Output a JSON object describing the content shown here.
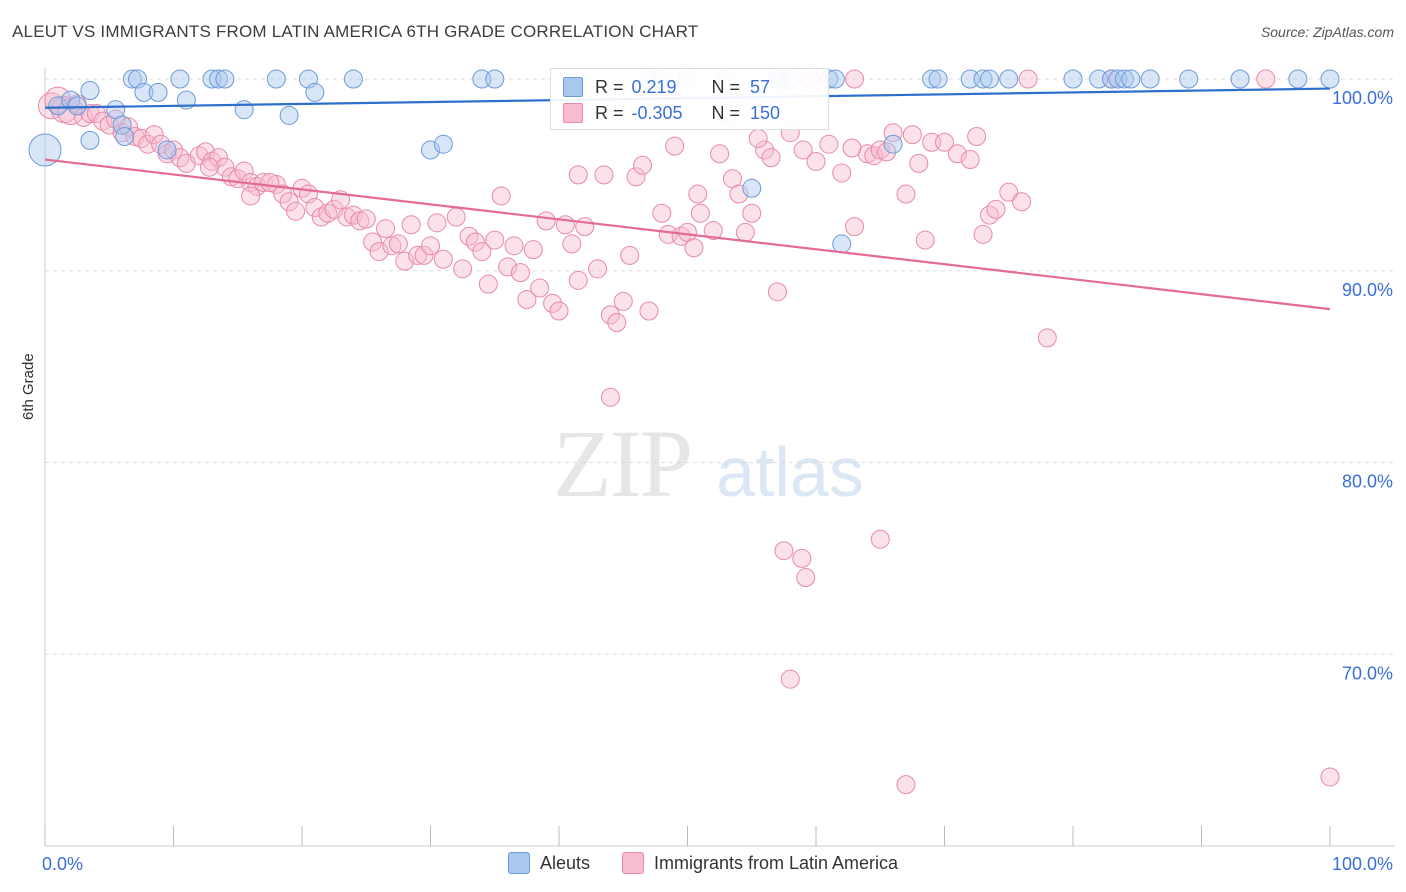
{
  "header": {
    "title": "ALEUT VS IMMIGRANTS FROM LATIN AMERICA 6TH GRADE CORRELATION CHART",
    "source": "Source: ZipAtlas.com"
  },
  "watermark": {
    "zip": "ZIP",
    "atlas": "atlas"
  },
  "legend_box": {
    "rows": [
      {
        "r_label": "R = ",
        "r_value": " 0.219",
        "n_label": "N = ",
        "n_value": " 57",
        "color": "#a9c8f0",
        "border": "#6e9ad8"
      },
      {
        "r_label": "R = ",
        "r_value": "-0.305",
        "n_label": "N = ",
        "n_value": "150",
        "color": "#f7bcd0",
        "border": "#e88aa8"
      }
    ]
  },
  "bottom_legend": {
    "items": [
      {
        "label": "Aleuts",
        "color": "#a9c8f0",
        "border": "#6e9ad8"
      },
      {
        "label": "Immigrants from Latin America",
        "color": "#f7bcd0",
        "border": "#e88aa8"
      }
    ]
  },
  "chart_data": {
    "type": "scatter",
    "title": "ALEUT VS IMMIGRANTS FROM LATIN AMERICA 6TH GRADE CORRELATION CHART",
    "xlabel": "",
    "ylabel": "6th Grade",
    "xlim": [
      0,
      100
    ],
    "ylim": [
      60,
      100
    ],
    "x_tick_labels": [
      "0.0%",
      "100.0%"
    ],
    "y_ticks": [
      70,
      80,
      90,
      100
    ],
    "y_tick_labels": [
      "70.0%",
      "80.0%",
      "90.0%",
      "100.0%"
    ],
    "grid": true,
    "legend_position": "top-center",
    "colors": {
      "aleuts": "#6e9ad8",
      "aleuts_line": "#2f6fcc",
      "latin": "#e88aa8",
      "latin_line": "#e56a94",
      "tick_label": "#3a6fd8"
    },
    "series": [
      {
        "name": "Aleuts",
        "r": 0.219,
        "n": 57,
        "trend": [
          [
            0,
            98.5
          ],
          [
            100,
            99.5
          ]
        ],
        "points": [
          [
            0,
            96.3
          ],
          [
            1,
            98.6
          ],
          [
            2,
            98.9
          ],
          [
            2.5,
            98.6
          ],
          [
            3.5,
            99.4
          ],
          [
            3.5,
            96.8
          ],
          [
            5.5,
            98.4
          ],
          [
            6,
            97.6
          ],
          [
            6.2,
            97.0
          ],
          [
            6.8,
            100
          ],
          [
            7.2,
            100
          ],
          [
            7.7,
            99.3
          ],
          [
            8.8,
            99.3
          ],
          [
            9.5,
            96.3
          ],
          [
            10.5,
            100
          ],
          [
            11,
            98.9
          ],
          [
            13,
            100
          ],
          [
            13.5,
            100
          ],
          [
            14,
            100
          ],
          [
            15.5,
            98.4
          ],
          [
            18,
            100
          ],
          [
            19,
            98.1
          ],
          [
            20.5,
            100
          ],
          [
            21,
            99.3
          ],
          [
            24,
            100
          ],
          [
            30,
            96.3
          ],
          [
            31,
            96.6
          ],
          [
            34,
            100
          ],
          [
            35,
            100
          ],
          [
            47,
            100
          ],
          [
            50,
            100
          ],
          [
            53,
            100
          ],
          [
            55,
            94.3
          ],
          [
            58,
            100
          ],
          [
            61,
            100
          ],
          [
            62,
            91.4
          ],
          [
            66,
            96.6
          ],
          [
            69,
            100
          ],
          [
            72,
            100
          ],
          [
            73,
            100
          ],
          [
            73.5,
            100
          ],
          [
            75,
            100
          ],
          [
            80,
            100
          ],
          [
            82,
            100
          ],
          [
            83,
            100
          ],
          [
            83.5,
            100
          ],
          [
            84,
            100
          ],
          [
            86,
            100
          ],
          [
            89,
            100
          ],
          [
            93,
            100
          ],
          [
            97.5,
            100
          ],
          [
            100,
            100
          ],
          [
            48,
            100
          ],
          [
            57,
            100
          ],
          [
            61.5,
            100
          ],
          [
            69.5,
            100
          ],
          [
            84.5,
            100
          ]
        ]
      },
      {
        "name": "Immigrants from Latin America",
        "r": -0.305,
        "n": 150,
        "trend": [
          [
            0,
            95.8
          ],
          [
            100,
            88.0
          ]
        ],
        "points": [
          [
            0.5,
            98.6
          ],
          [
            1,
            98.9
          ],
          [
            1.5,
            98.4
          ],
          [
            2,
            98.3
          ],
          [
            2.5,
            98.7
          ],
          [
            3,
            98.0
          ],
          [
            3.5,
            98.2
          ],
          [
            4,
            98.2
          ],
          [
            4.5,
            97.8
          ],
          [
            5,
            97.6
          ],
          [
            5.5,
            97.9
          ],
          [
            6,
            97.2
          ],
          [
            6.5,
            97.5
          ],
          [
            7,
            97.0
          ],
          [
            7.5,
            96.9
          ],
          [
            8,
            96.6
          ],
          [
            8.5,
            97.1
          ],
          [
            9,
            96.6
          ],
          [
            9.5,
            96.1
          ],
          [
            10,
            96.3
          ],
          [
            10.5,
            95.9
          ],
          [
            11,
            95.6
          ],
          [
            12,
            96.0
          ],
          [
            12.5,
            96.2
          ],
          [
            13,
            95.7
          ],
          [
            13.5,
            95.9
          ],
          [
            14,
            95.4
          ],
          [
            14.5,
            94.9
          ],
          [
            15,
            94.8
          ],
          [
            15.5,
            95.2
          ],
          [
            16,
            94.6
          ],
          [
            16.5,
            94.4
          ],
          [
            17,
            94.6
          ],
          [
            18,
            94.5
          ],
          [
            18.5,
            94.0
          ],
          [
            19,
            93.6
          ],
          [
            19.5,
            93.1
          ],
          [
            20,
            94.3
          ],
          [
            20.5,
            94.0
          ],
          [
            21,
            93.3
          ],
          [
            21.5,
            92.8
          ],
          [
            22,
            93.0
          ],
          [
            22.5,
            93.2
          ],
          [
            23,
            93.7
          ],
          [
            23.5,
            92.8
          ],
          [
            24,
            92.9
          ],
          [
            24.5,
            92.6
          ],
          [
            25,
            92.7
          ],
          [
            25.5,
            91.5
          ],
          [
            26,
            91.0
          ],
          [
            26.5,
            92.2
          ],
          [
            27,
            91.3
          ],
          [
            27.5,
            91.4
          ],
          [
            28,
            90.5
          ],
          [
            28.5,
            92.4
          ],
          [
            29,
            90.8
          ],
          [
            29.5,
            90.8
          ],
          [
            30,
            91.3
          ],
          [
            30.5,
            92.5
          ],
          [
            31,
            90.6
          ],
          [
            32,
            92.8
          ],
          [
            32.5,
            90.1
          ],
          [
            33,
            91.8
          ],
          [
            33.5,
            91.5
          ],
          [
            34,
            91.0
          ],
          [
            34.5,
            89.3
          ],
          [
            35,
            91.6
          ],
          [
            35.5,
            93.9
          ],
          [
            36,
            90.2
          ],
          [
            36.5,
            91.3
          ],
          [
            37,
            89.9
          ],
          [
            37.5,
            88.5
          ],
          [
            38,
            91.1
          ],
          [
            38.5,
            89.1
          ],
          [
            39,
            92.6
          ],
          [
            39.5,
            88.3
          ],
          [
            40,
            87.9
          ],
          [
            40.5,
            92.4
          ],
          [
            41,
            91.4
          ],
          [
            41.5,
            89.5
          ],
          [
            42,
            92.3
          ],
          [
            43,
            90.1
          ],
          [
            43.5,
            95.0
          ],
          [
            44,
            87.7
          ],
          [
            44.5,
            87.3
          ],
          [
            45,
            88.4
          ],
          [
            45.5,
            90.8
          ],
          [
            46,
            94.9
          ],
          [
            46.5,
            95.5
          ],
          [
            47,
            87.9
          ],
          [
            48,
            93.0
          ],
          [
            48.5,
            91.9
          ],
          [
            49,
            96.5
          ],
          [
            49.5,
            91.8
          ],
          [
            50,
            92.0
          ],
          [
            50.5,
            91.2
          ],
          [
            51,
            93.0
          ],
          [
            52,
            92.1
          ],
          [
            52.5,
            96.1
          ],
          [
            53,
            98.2
          ],
          [
            53.5,
            94.8
          ],
          [
            54,
            94.0
          ],
          [
            54.5,
            92.0
          ],
          [
            55,
            93.0
          ],
          [
            56,
            96.3
          ],
          [
            56.5,
            95.9
          ],
          [
            57,
            88.9
          ],
          [
            58,
            97.2
          ],
          [
            59,
            96.3
          ],
          [
            60,
            95.7
          ],
          [
            61,
            96.6
          ],
          [
            62,
            95.1
          ],
          [
            63,
            92.3
          ],
          [
            64,
            96.1
          ],
          [
            64.5,
            96.0
          ],
          [
            65,
            96.3
          ],
          [
            66,
            97.2
          ],
          [
            67,
            94.0
          ],
          [
            68,
            95.6
          ],
          [
            68.5,
            91.6
          ],
          [
            69,
            96.7
          ],
          [
            70,
            96.7
          ],
          [
            71,
            96.1
          ],
          [
            72,
            95.8
          ],
          [
            73,
            91.9
          ],
          [
            73.5,
            92.9
          ],
          [
            74,
            93.2
          ],
          [
            75,
            94.1
          ],
          [
            76,
            93.6
          ],
          [
            78,
            86.5
          ],
          [
            59.5,
            100
          ],
          [
            63,
            100
          ],
          [
            76.5,
            100
          ],
          [
            83,
            100
          ],
          [
            95,
            100
          ],
          [
            67.5,
            97.1
          ],
          [
            65.5,
            96.2
          ],
          [
            57.5,
            75.4
          ],
          [
            58.9,
            75.0
          ],
          [
            59.2,
            74.0
          ],
          [
            58,
            68.7
          ],
          [
            65,
            76.0
          ],
          [
            67,
            63.2
          ],
          [
            100,
            63.6
          ],
          [
            44,
            83.4
          ],
          [
            72.5,
            97.0
          ],
          [
            62.8,
            96.4
          ],
          [
            55.5,
            96.9
          ],
          [
            50.8,
            94.0
          ],
          [
            41.5,
            95.0
          ],
          [
            17.5,
            94.6
          ],
          [
            16,
            93.9
          ],
          [
            12.8,
            95.4
          ]
        ]
      }
    ]
  }
}
